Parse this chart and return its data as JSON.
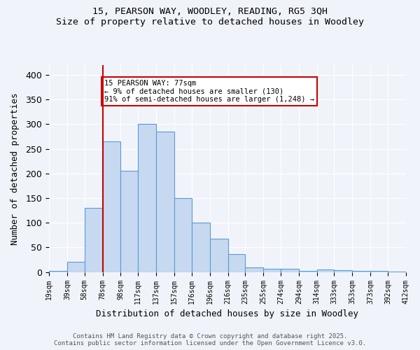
{
  "title_line1": "15, PEARSON WAY, WOODLEY, READING, RG5 3QH",
  "title_line2": "Size of property relative to detached houses in Woodley",
  "xlabel": "Distribution of detached houses by size in Woodley",
  "ylabel": "Number of detached properties",
  "bar_color": "#c6d9f0",
  "bar_edge_color": "#5b9bd5",
  "bins": [
    19,
    39,
    58,
    78,
    98,
    117,
    137,
    157,
    176,
    196,
    216,
    235,
    255,
    274,
    294,
    314,
    333,
    353,
    373,
    392,
    412
  ],
  "counts": [
    2,
    21,
    130,
    265,
    205,
    300,
    285,
    150,
    100,
    68,
    37,
    10,
    6,
    6,
    3,
    5,
    4,
    3,
    2,
    1,
    1
  ],
  "red_line_x": 78,
  "annotation_text": "15 PEARSON WAY: 77sqm\n← 9% of detached houses are smaller (130)\n91% of semi-detached houses are larger (1,248) →",
  "annotation_box_color": "#ffffff",
  "annotation_box_edge": "#cc0000",
  "ylim": [
    0,
    420
  ],
  "background_color": "#f0f4fa",
  "grid_color": "#ffffff",
  "footnote1": "Contains HM Land Registry data © Crown copyright and database right 2025.",
  "footnote2": "Contains public sector information licensed under the Open Government Licence v3.0.",
  "tick_labels": [
    "19sqm",
    "39sqm",
    "58sqm",
    "78sqm",
    "98sqm",
    "117sqm",
    "137sqm",
    "157sqm",
    "176sqm",
    "196sqm",
    "216sqm",
    "235sqm",
    "255sqm",
    "274sqm",
    "294sqm",
    "314sqm",
    "333sqm",
    "353sqm",
    "373sqm",
    "392sqm",
    "412sqm"
  ]
}
